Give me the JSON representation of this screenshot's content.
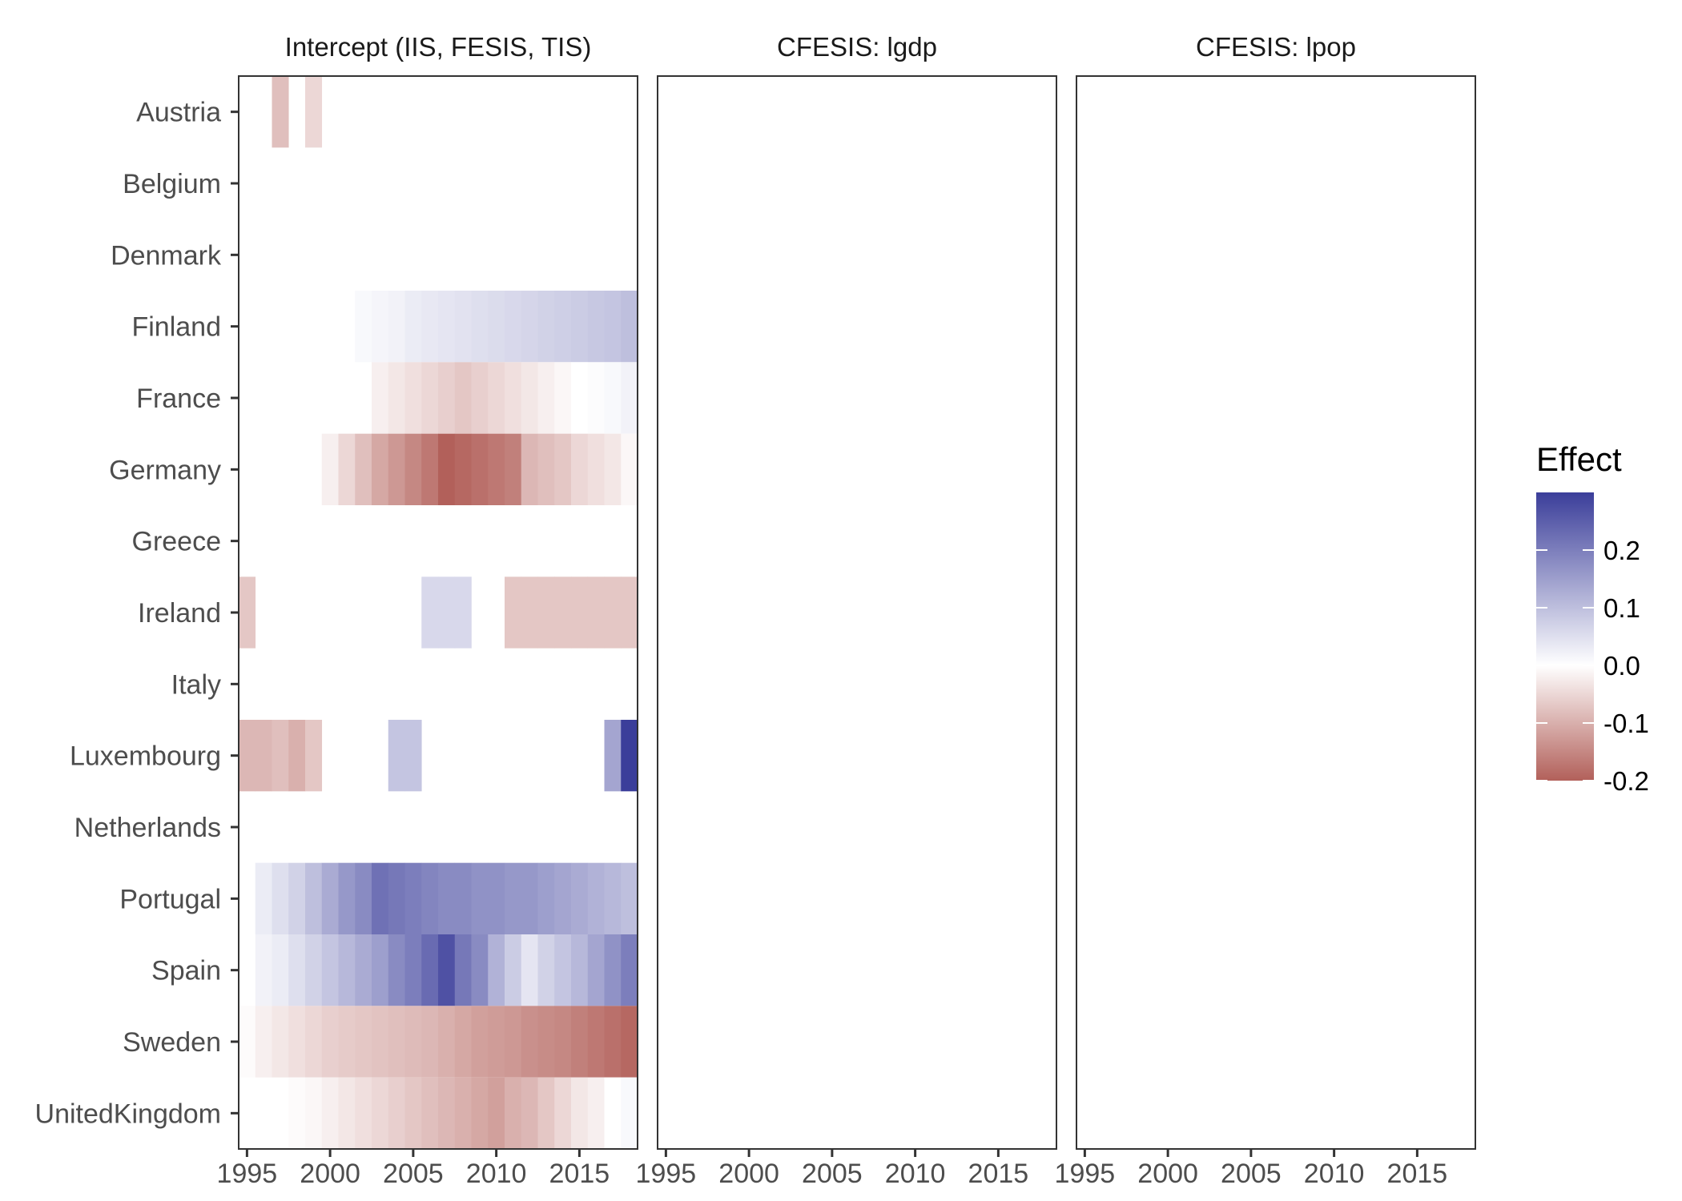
{
  "chart_data": {
    "type": "heatmap",
    "panels": [
      {
        "title": "Intercept (IIS, FESIS, TIS)",
        "cells": [
          {
            "country": "Austria",
            "year": 1997,
            "value": -0.08
          },
          {
            "country": "Austria",
            "year": 1999,
            "value": -0.05
          },
          {
            "country": "Finland",
            "year": 2002,
            "value": 0.01
          },
          {
            "country": "Finland",
            "year": 2003,
            "value": 0.015
          },
          {
            "country": "Finland",
            "year": 2004,
            "value": 0.02
          },
          {
            "country": "Finland",
            "year": 2005,
            "value": 0.03
          },
          {
            "country": "Finland",
            "year": 2006,
            "value": 0.035
          },
          {
            "country": "Finland",
            "year": 2007,
            "value": 0.04
          },
          {
            "country": "Finland",
            "year": 2008,
            "value": 0.045
          },
          {
            "country": "Finland",
            "year": 2009,
            "value": 0.05
          },
          {
            "country": "Finland",
            "year": 2010,
            "value": 0.055
          },
          {
            "country": "Finland",
            "year": 2011,
            "value": 0.06
          },
          {
            "country": "Finland",
            "year": 2012,
            "value": 0.065
          },
          {
            "country": "Finland",
            "year": 2013,
            "value": 0.07
          },
          {
            "country": "Finland",
            "year": 2014,
            "value": 0.075
          },
          {
            "country": "Finland",
            "year": 2015,
            "value": 0.08
          },
          {
            "country": "Finland",
            "year": 2016,
            "value": 0.085
          },
          {
            "country": "Finland",
            "year": 2017,
            "value": 0.09
          },
          {
            "country": "Finland",
            "year": 2018,
            "value": 0.1
          },
          {
            "country": "France",
            "year": 2003,
            "value": -0.02
          },
          {
            "country": "France",
            "year": 2004,
            "value": -0.03
          },
          {
            "country": "France",
            "year": 2005,
            "value": -0.04
          },
          {
            "country": "France",
            "year": 2006,
            "value": -0.05
          },
          {
            "country": "France",
            "year": 2007,
            "value": -0.06
          },
          {
            "country": "France",
            "year": 2008,
            "value": -0.07
          },
          {
            "country": "France",
            "year": 2009,
            "value": -0.06
          },
          {
            "country": "France",
            "year": 2010,
            "value": -0.05
          },
          {
            "country": "France",
            "year": 2011,
            "value": -0.04
          },
          {
            "country": "France",
            "year": 2012,
            "value": -0.03
          },
          {
            "country": "France",
            "year": 2013,
            "value": -0.02
          },
          {
            "country": "France",
            "year": 2014,
            "value": -0.01
          },
          {
            "country": "France",
            "year": 2015,
            "value": 0.0
          },
          {
            "country": "France",
            "year": 2016,
            "value": 0.005
          },
          {
            "country": "France",
            "year": 2017,
            "value": 0.01
          },
          {
            "country": "France",
            "year": 2018,
            "value": 0.02
          },
          {
            "country": "Germany",
            "year": 2000,
            "value": -0.02
          },
          {
            "country": "Germany",
            "year": 2001,
            "value": -0.05
          },
          {
            "country": "Germany",
            "year": 2002,
            "value": -0.08
          },
          {
            "country": "Germany",
            "year": 2003,
            "value": -0.11
          },
          {
            "country": "Germany",
            "year": 2004,
            "value": -0.13
          },
          {
            "country": "Germany",
            "year": 2005,
            "value": -0.15
          },
          {
            "country": "Germany",
            "year": 2006,
            "value": -0.17
          },
          {
            "country": "Germany",
            "year": 2007,
            "value": -0.2
          },
          {
            "country": "Germany",
            "year": 2008,
            "value": -0.19
          },
          {
            "country": "Germany",
            "year": 2009,
            "value": -0.18
          },
          {
            "country": "Germany",
            "year": 2010,
            "value": -0.17
          },
          {
            "country": "Germany",
            "year": 2011,
            "value": -0.16
          },
          {
            "country": "Germany",
            "year": 2012,
            "value": -0.09
          },
          {
            "country": "Germany",
            "year": 2013,
            "value": -0.08
          },
          {
            "country": "Germany",
            "year": 2014,
            "value": -0.07
          },
          {
            "country": "Germany",
            "year": 2015,
            "value": -0.05
          },
          {
            "country": "Germany",
            "year": 2016,
            "value": -0.04
          },
          {
            "country": "Germany",
            "year": 2017,
            "value": -0.03
          },
          {
            "country": "Germany",
            "year": 2018,
            "value": -0.01
          },
          {
            "country": "Ireland",
            "year": 1995,
            "value": -0.07
          },
          {
            "country": "Ireland",
            "year": 2006,
            "value": 0.06
          },
          {
            "country": "Ireland",
            "year": 2007,
            "value": 0.06
          },
          {
            "country": "Ireland",
            "year": 2008,
            "value": 0.06
          },
          {
            "country": "Ireland",
            "year": 2011,
            "value": -0.07
          },
          {
            "country": "Ireland",
            "year": 2012,
            "value": -0.07
          },
          {
            "country": "Ireland",
            "year": 2013,
            "value": -0.07
          },
          {
            "country": "Ireland",
            "year": 2014,
            "value": -0.07
          },
          {
            "country": "Ireland",
            "year": 2015,
            "value": -0.07
          },
          {
            "country": "Ireland",
            "year": 2016,
            "value": -0.07
          },
          {
            "country": "Ireland",
            "year": 2017,
            "value": -0.07
          },
          {
            "country": "Ireland",
            "year": 2018,
            "value": -0.07
          },
          {
            "country": "Luxembourg",
            "year": 1995,
            "value": -0.09
          },
          {
            "country": "Luxembourg",
            "year": 1996,
            "value": -0.09
          },
          {
            "country": "Luxembourg",
            "year": 1997,
            "value": -0.08
          },
          {
            "country": "Luxembourg",
            "year": 1998,
            "value": -0.1
          },
          {
            "country": "Luxembourg",
            "year": 1999,
            "value": -0.07
          },
          {
            "country": "Luxembourg",
            "year": 2004,
            "value": 0.09
          },
          {
            "country": "Luxembourg",
            "year": 2005,
            "value": 0.09
          },
          {
            "country": "Luxembourg",
            "year": 2017,
            "value": 0.14
          },
          {
            "country": "Luxembourg",
            "year": 2018,
            "value": 0.3
          },
          {
            "country": "Portugal",
            "year": 1996,
            "value": 0.03
          },
          {
            "country": "Portugal",
            "year": 1997,
            "value": 0.05
          },
          {
            "country": "Portugal",
            "year": 1998,
            "value": 0.07
          },
          {
            "country": "Portugal",
            "year": 1999,
            "value": 0.1
          },
          {
            "country": "Portugal",
            "year": 2000,
            "value": 0.13
          },
          {
            "country": "Portugal",
            "year": 2001,
            "value": 0.16
          },
          {
            "country": "Portugal",
            "year": 2002,
            "value": 0.18
          },
          {
            "country": "Portugal",
            "year": 2003,
            "value": 0.22
          },
          {
            "country": "Portugal",
            "year": 2004,
            "value": 0.21
          },
          {
            "country": "Portugal",
            "year": 2005,
            "value": 0.2
          },
          {
            "country": "Portugal",
            "year": 2006,
            "value": 0.19
          },
          {
            "country": "Portugal",
            "year": 2007,
            "value": 0.18
          },
          {
            "country": "Portugal",
            "year": 2008,
            "value": 0.18
          },
          {
            "country": "Portugal",
            "year": 2009,
            "value": 0.17
          },
          {
            "country": "Portugal",
            "year": 2010,
            "value": 0.17
          },
          {
            "country": "Portugal",
            "year": 2011,
            "value": 0.16
          },
          {
            "country": "Portugal",
            "year": 2012,
            "value": 0.16
          },
          {
            "country": "Portugal",
            "year": 2013,
            "value": 0.15
          },
          {
            "country": "Portugal",
            "year": 2014,
            "value": 0.14
          },
          {
            "country": "Portugal",
            "year": 2015,
            "value": 0.13
          },
          {
            "country": "Portugal",
            "year": 2016,
            "value": 0.12
          },
          {
            "country": "Portugal",
            "year": 2017,
            "value": 0.11
          },
          {
            "country": "Portugal",
            "year": 2018,
            "value": 0.1
          },
          {
            "country": "Spain",
            "year": 1996,
            "value": 0.02
          },
          {
            "country": "Spain",
            "year": 1997,
            "value": 0.03
          },
          {
            "country": "Spain",
            "year": 1998,
            "value": 0.05
          },
          {
            "country": "Spain",
            "year": 1999,
            "value": 0.07
          },
          {
            "country": "Spain",
            "year": 2000,
            "value": 0.09
          },
          {
            "country": "Spain",
            "year": 2001,
            "value": 0.11
          },
          {
            "country": "Spain",
            "year": 2002,
            "value": 0.13
          },
          {
            "country": "Spain",
            "year": 2003,
            "value": 0.15
          },
          {
            "country": "Spain",
            "year": 2004,
            "value": 0.18
          },
          {
            "country": "Spain",
            "year": 2005,
            "value": 0.2
          },
          {
            "country": "Spain",
            "year": 2006,
            "value": 0.23
          },
          {
            "country": "Spain",
            "year": 2007,
            "value": 0.27
          },
          {
            "country": "Spain",
            "year": 2008,
            "value": 0.21
          },
          {
            "country": "Spain",
            "year": 2009,
            "value": 0.18
          },
          {
            "country": "Spain",
            "year": 2010,
            "value": 0.12
          },
          {
            "country": "Spain",
            "year": 2011,
            "value": 0.08
          },
          {
            "country": "Spain",
            "year": 2012,
            "value": 0.04
          },
          {
            "country": "Spain",
            "year": 2013,
            "value": 0.07
          },
          {
            "country": "Spain",
            "year": 2014,
            "value": 0.09
          },
          {
            "country": "Spain",
            "year": 2015,
            "value": 0.11
          },
          {
            "country": "Spain",
            "year": 2016,
            "value": 0.14
          },
          {
            "country": "Spain",
            "year": 2017,
            "value": 0.17
          },
          {
            "country": "Spain",
            "year": 2018,
            "value": 0.2
          },
          {
            "country": "Sweden",
            "year": 1995,
            "value": -0.005
          },
          {
            "country": "Sweden",
            "year": 1996,
            "value": -0.02
          },
          {
            "country": "Sweden",
            "year": 1997,
            "value": -0.03
          },
          {
            "country": "Sweden",
            "year": 1998,
            "value": -0.04
          },
          {
            "country": "Sweden",
            "year": 1999,
            "value": -0.05
          },
          {
            "country": "Sweden",
            "year": 2000,
            "value": -0.06
          },
          {
            "country": "Sweden",
            "year": 2001,
            "value": -0.065
          },
          {
            "country": "Sweden",
            "year": 2002,
            "value": -0.07
          },
          {
            "country": "Sweden",
            "year": 2003,
            "value": -0.075
          },
          {
            "country": "Sweden",
            "year": 2004,
            "value": -0.08
          },
          {
            "country": "Sweden",
            "year": 2005,
            "value": -0.085
          },
          {
            "country": "Sweden",
            "year": 2006,
            "value": -0.09
          },
          {
            "country": "Sweden",
            "year": 2007,
            "value": -0.1
          },
          {
            "country": "Sweden",
            "year": 2008,
            "value": -0.11
          },
          {
            "country": "Sweden",
            "year": 2009,
            "value": -0.12
          },
          {
            "country": "Sweden",
            "year": 2010,
            "value": -0.125
          },
          {
            "country": "Sweden",
            "year": 2011,
            "value": -0.13
          },
          {
            "country": "Sweden",
            "year": 2012,
            "value": -0.14
          },
          {
            "country": "Sweden",
            "year": 2013,
            "value": -0.145
          },
          {
            "country": "Sweden",
            "year": 2014,
            "value": -0.15
          },
          {
            "country": "Sweden",
            "year": 2015,
            "value": -0.16
          },
          {
            "country": "Sweden",
            "year": 2016,
            "value": -0.17
          },
          {
            "country": "Sweden",
            "year": 2017,
            "value": -0.18
          },
          {
            "country": "Sweden",
            "year": 2018,
            "value": -0.19
          },
          {
            "country": "UnitedKingdom",
            "year": 1998,
            "value": -0.005
          },
          {
            "country": "UnitedKingdom",
            "year": 1999,
            "value": -0.01
          },
          {
            "country": "UnitedKingdom",
            "year": 2000,
            "value": -0.02
          },
          {
            "country": "UnitedKingdom",
            "year": 2001,
            "value": -0.03
          },
          {
            "country": "UnitedKingdom",
            "year": 2002,
            "value": -0.04
          },
          {
            "country": "UnitedKingdom",
            "year": 2003,
            "value": -0.05
          },
          {
            "country": "UnitedKingdom",
            "year": 2004,
            "value": -0.06
          },
          {
            "country": "UnitedKingdom",
            "year": 2005,
            "value": -0.07
          },
          {
            "country": "UnitedKingdom",
            "year": 2006,
            "value": -0.08
          },
          {
            "country": "UnitedKingdom",
            "year": 2007,
            "value": -0.09
          },
          {
            "country": "UnitedKingdom",
            "year": 2008,
            "value": -0.1
          },
          {
            "country": "UnitedKingdom",
            "year": 2009,
            "value": -0.11
          },
          {
            "country": "UnitedKingdom",
            "year": 2010,
            "value": -0.12
          },
          {
            "country": "UnitedKingdom",
            "year": 2011,
            "value": -0.1
          },
          {
            "country": "UnitedKingdom",
            "year": 2012,
            "value": -0.09
          },
          {
            "country": "UnitedKingdom",
            "year": 2013,
            "value": -0.07
          },
          {
            "country": "UnitedKingdom",
            "year": 2014,
            "value": -0.05
          },
          {
            "country": "UnitedKingdom",
            "year": 2015,
            "value": -0.03
          },
          {
            "country": "UnitedKingdom",
            "year": 2016,
            "value": -0.02
          },
          {
            "country": "UnitedKingdom",
            "year": 2017,
            "value": 0.0
          },
          {
            "country": "UnitedKingdom",
            "year": 2018,
            "value": 0.01
          }
        ]
      },
      {
        "title": "CFESIS: lgdp",
        "cells": []
      },
      {
        "title": "CFESIS: lpop",
        "cells": []
      }
    ],
    "countries": [
      "Austria",
      "Belgium",
      "Denmark",
      "Finland",
      "France",
      "Germany",
      "Greece",
      "Ireland",
      "Italy",
      "Luxembourg",
      "Netherlands",
      "Portugal",
      "Spain",
      "Sweden",
      "UnitedKingdom"
    ],
    "x_ticks": [
      1995,
      2000,
      2005,
      2010,
      2015
    ],
    "xlim": [
      1994.5,
      2018.5
    ],
    "legend": {
      "title": "Effect",
      "ticks": [
        0.2,
        0.1,
        0.0,
        -0.1,
        -0.2
      ],
      "tick_labels": [
        "0.2",
        "0.1",
        "0.0",
        "-0.1",
        "-0.2"
      ],
      "range": [
        -0.2,
        0.3
      ],
      "position": "right"
    },
    "colors": {
      "low": "#b2605a",
      "mid": "#ffffff",
      "high": "#3b3e9a",
      "panel_border": "#333333",
      "axis_tick": "#333333"
    }
  }
}
